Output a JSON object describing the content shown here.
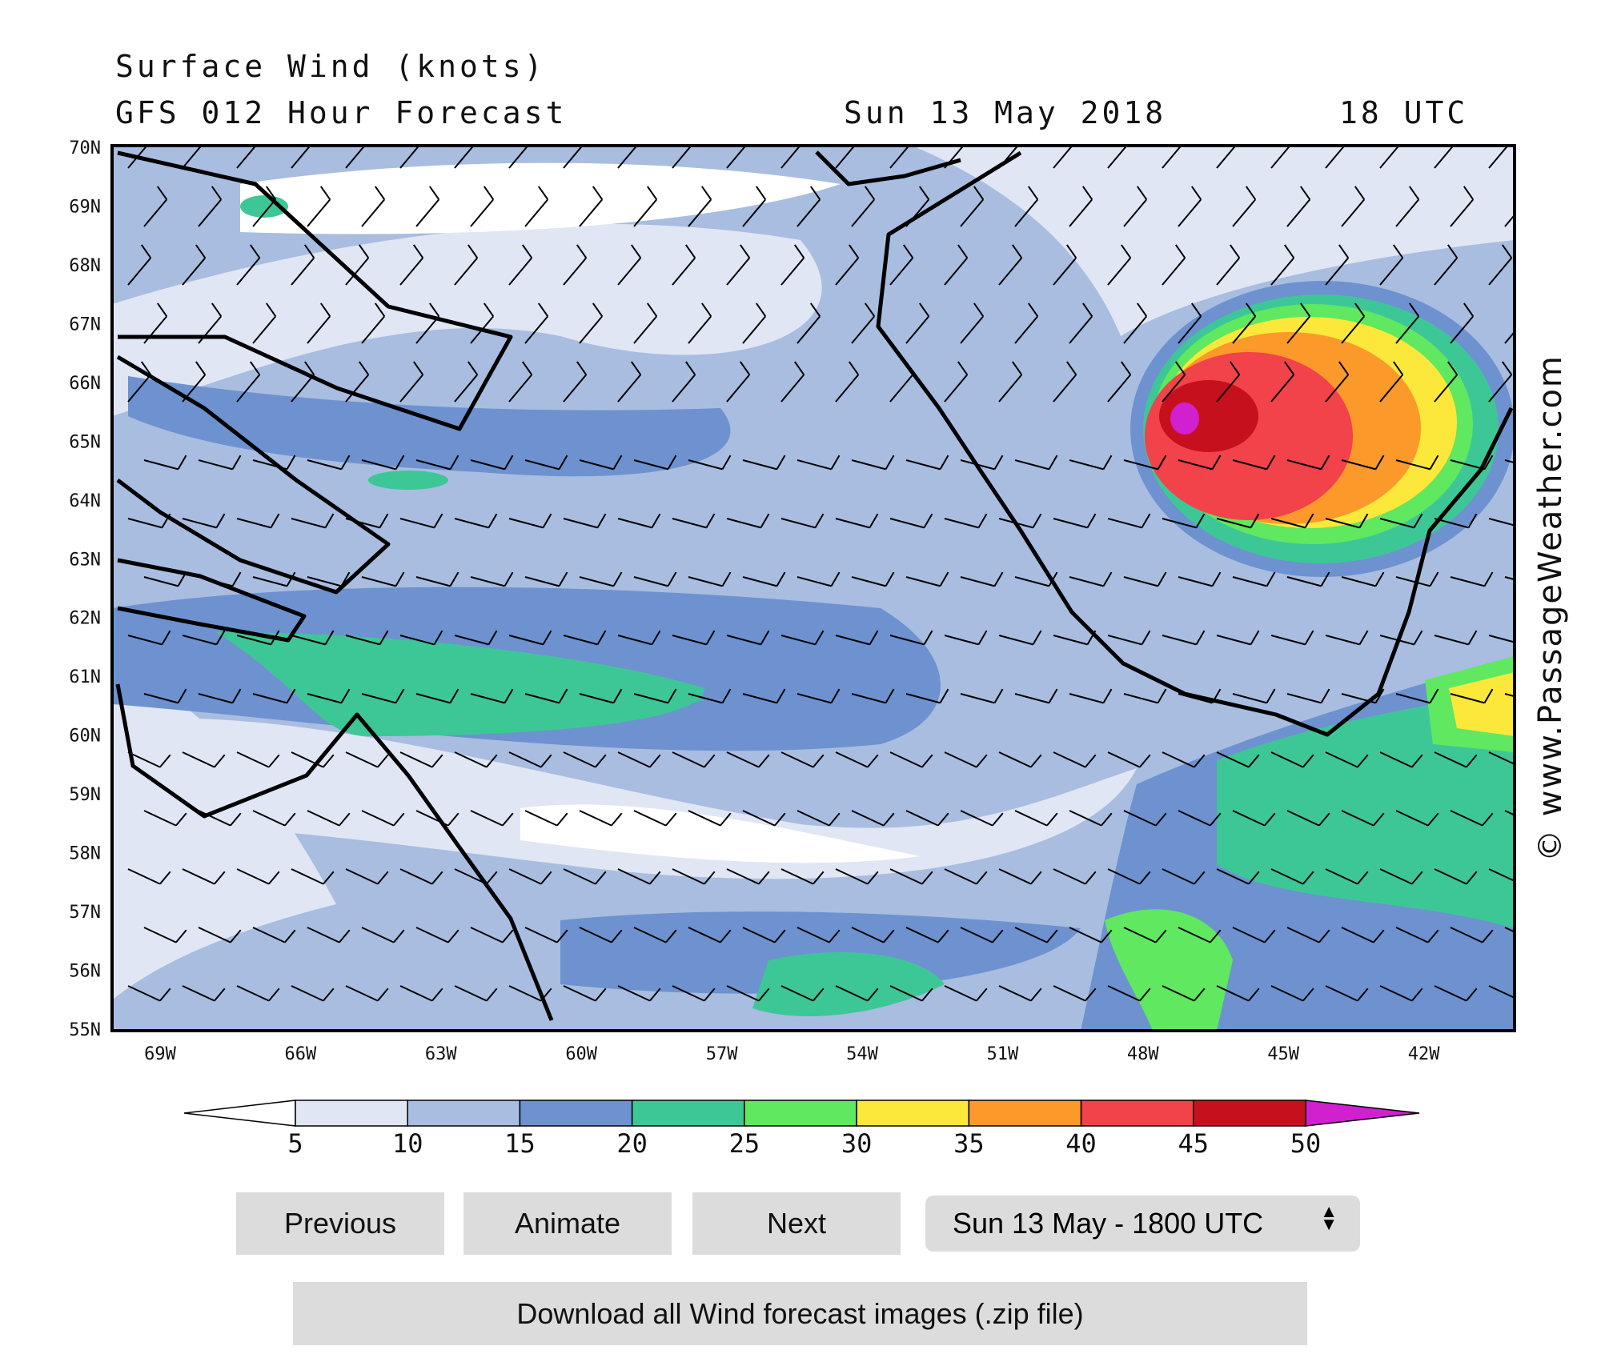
{
  "header": {
    "title": "Surface Wind (knots)",
    "subtitle": "GFS 012 Hour Forecast",
    "date": "Sun 13 May 2018",
    "time": "18 UTC"
  },
  "map": {
    "lat_labels": [
      "70N",
      "69N",
      "68N",
      "67N",
      "66N",
      "65N",
      "64N",
      "63N",
      "62N",
      "61N",
      "60N",
      "59N",
      "58N",
      "57N",
      "56N",
      "55N"
    ],
    "lon_labels": [
      "69W",
      "66W",
      "63W",
      "60W",
      "57W",
      "54W",
      "51W",
      "48W",
      "45W",
      "42W"
    ],
    "watermark": "© www.PassageWeather.com"
  },
  "colorbar": {
    "labels": [
      5,
      10,
      15,
      20,
      25,
      30,
      35,
      40,
      45,
      50
    ]
  },
  "controls": {
    "previous": "Previous",
    "animate": "Animate",
    "next": "Next",
    "select": "Sun 13 May - 1800 UTC",
    "download": "Download all Wind forecast images (.zip file)"
  }
}
